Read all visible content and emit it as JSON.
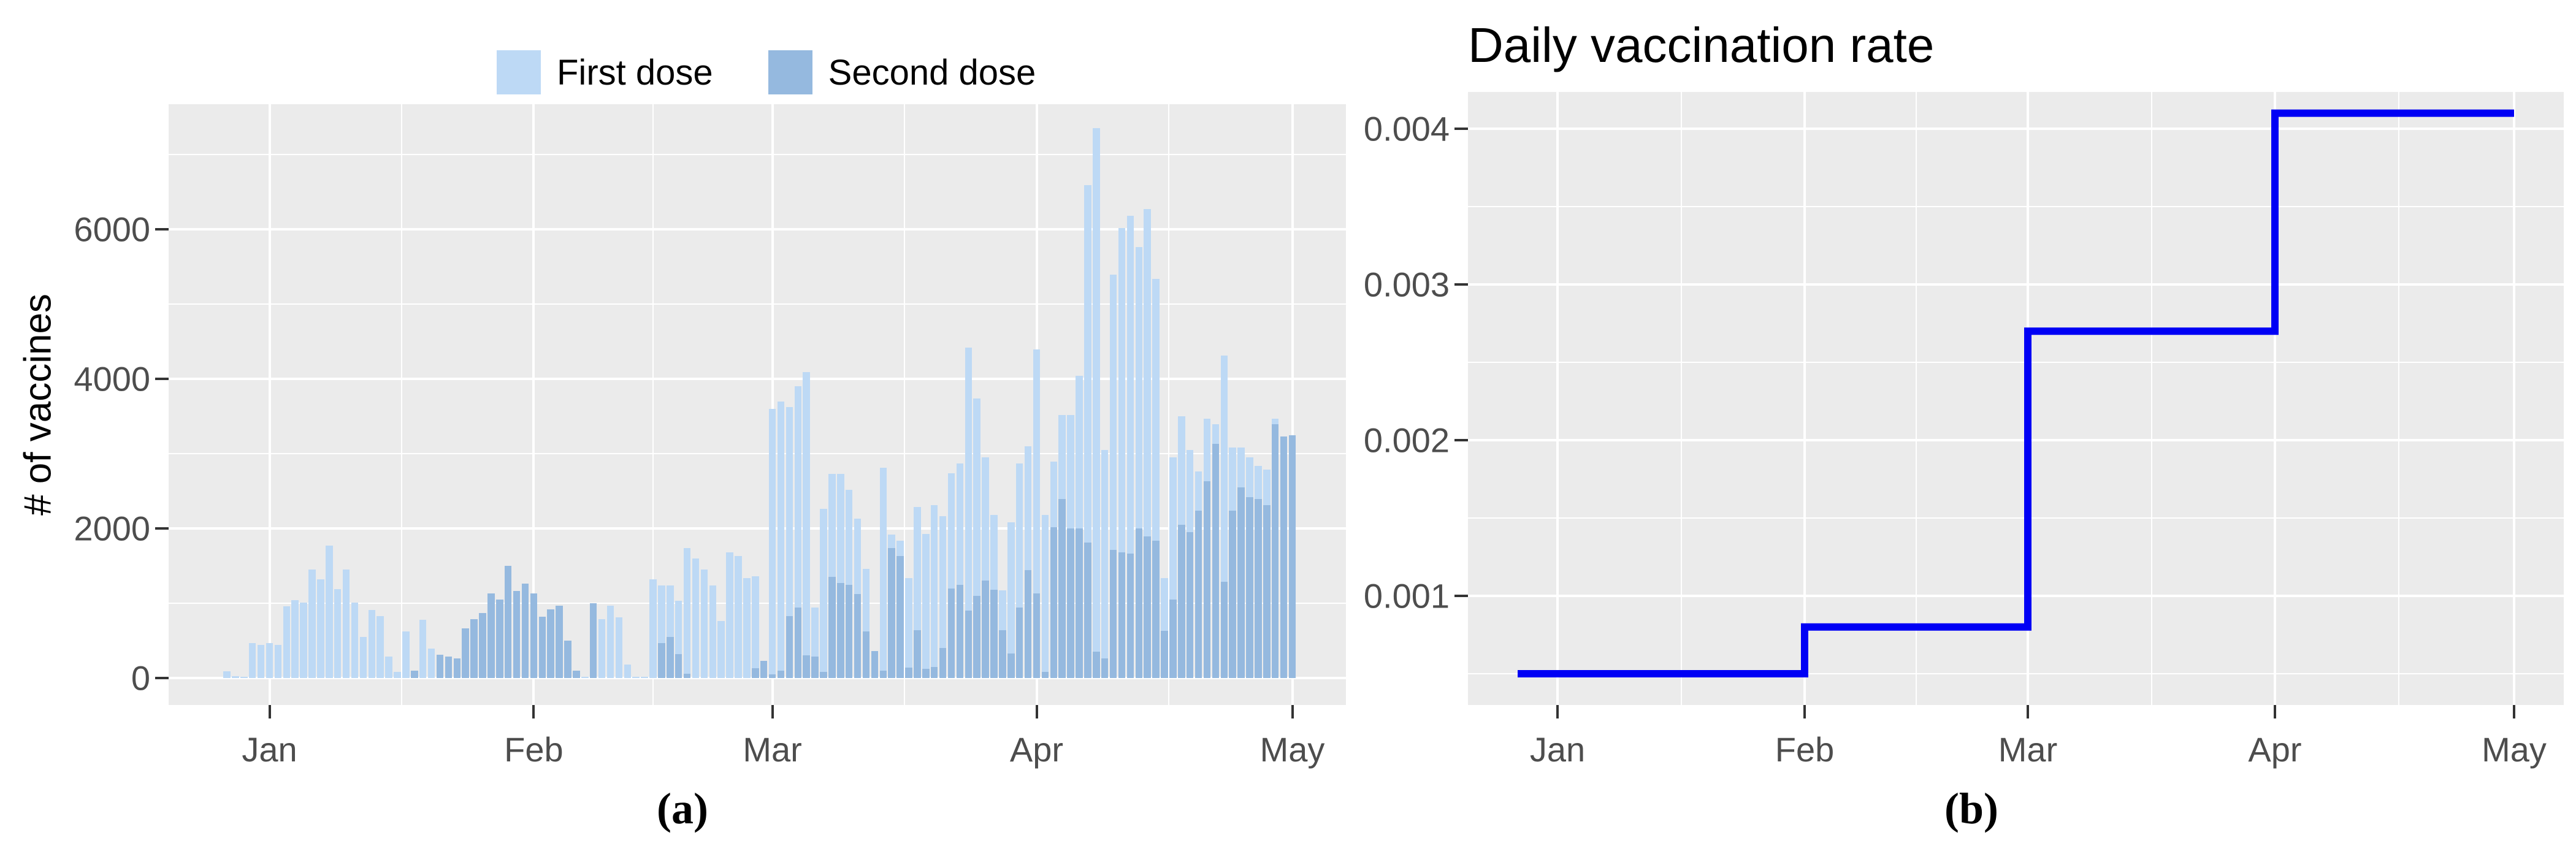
{
  "legend": {
    "first_label": "First dose",
    "second_label": "Second dose"
  },
  "panel_a": {
    "caption": "(a)",
    "ylabel": "# of vaccines",
    "yticks": [
      0,
      2000,
      4000,
      6000
    ],
    "ytick_labels": [
      "0",
      "2000",
      "4000",
      "6000"
    ],
    "xtick_labels": [
      "Jan",
      "Feb",
      "Mar",
      "Apr",
      "May"
    ]
  },
  "panel_b": {
    "caption": "(b)",
    "title": "Daily vaccination rate",
    "yticks": [
      0.001,
      0.002,
      0.003,
      0.004
    ],
    "ytick_labels": [
      "0.001",
      "0.002",
      "0.003",
      "0.004"
    ],
    "xtick_labels": [
      "Jan",
      "Feb",
      "Mar",
      "Apr",
      "May"
    ]
  },
  "colors": {
    "first_dose": "#BDD9F5",
    "second_dose": "#95B9DF",
    "step_line": "#0000F5",
    "panel_bg": "#EBEBEB",
    "grid": "#FFFFFF",
    "tick_text": "#4D4D4D"
  },
  "chart_data": [
    {
      "type": "bar",
      "panel": "a",
      "ylabel": "# of vaccines",
      "x_start": "Dec 27",
      "x_end": "May 1",
      "x_unit": "day",
      "xticks": [
        "Jan",
        "Feb",
        "Mar",
        "Apr",
        "May"
      ],
      "xtick_day_offsets": [
        5,
        36,
        64,
        95,
        125
      ],
      "minor_xtick_day_offsets": [
        20.5,
        50,
        79.5,
        110.5
      ],
      "yticks": [
        0,
        2000,
        4000,
        6000
      ],
      "ylim": [
        0,
        7700
      ],
      "legend_position": "top",
      "grid": true,
      "bar_position": "identity-overlay",
      "series": [
        {
          "name": "First dose",
          "values": [
            90,
            25,
            20,
            470,
            440,
            470,
            440,
            960,
            1040,
            1010,
            1450,
            1320,
            1770,
            1190,
            1450,
            1010,
            550,
            910,
            830,
            290,
            80,
            620,
            100,
            780,
            390,
            60,
            0,
            0,
            0,
            0,
            0,
            0,
            0,
            0,
            0,
            0,
            0,
            0,
            0,
            0,
            0,
            0,
            20,
            0,
            790,
            970,
            815,
            180,
            20,
            20,
            1320,
            1240,
            1240,
            1030,
            1740,
            1600,
            1450,
            1240,
            760,
            1680,
            1630,
            1340,
            1360,
            230,
            3600,
            3700,
            3620,
            3900,
            4090,
            940,
            2260,
            2730,
            2730,
            2520,
            2130,
            1460,
            360,
            2810,
            1920,
            1840,
            1340,
            2290,
            1930,
            2310,
            2160,
            2740,
            2870,
            4420,
            3740,
            2950,
            2180,
            1170,
            2080,
            2870,
            3100,
            4390,
            2180,
            2890,
            3520,
            3520,
            4040,
            6590,
            7350,
            3050,
            5390,
            6020,
            6180,
            5760,
            6270,
            5340,
            1340,
            2950,
            3500,
            3050,
            2760,
            3470,
            3390,
            4310,
            3080,
            3080,
            2950,
            2840,
            2790,
            3470,
            2130,
            1900
          ]
        },
        {
          "name": "Second dose",
          "values": [
            0,
            0,
            0,
            0,
            0,
            0,
            0,
            0,
            0,
            0,
            0,
            0,
            0,
            0,
            0,
            0,
            0,
            0,
            0,
            0,
            0,
            0,
            100,
            0,
            0,
            310,
            290,
            260,
            660,
            790,
            870,
            1130,
            1050,
            1500,
            1160,
            1260,
            1130,
            820,
            920,
            970,
            500,
            100,
            0,
            1000,
            0,
            0,
            0,
            0,
            0,
            0,
            0,
            470,
            550,
            320,
            60,
            0,
            0,
            0,
            0,
            0,
            0,
            0,
            130,
            230,
            50,
            100,
            830,
            940,
            300,
            290,
            80,
            1350,
            1270,
            1250,
            1120,
            620,
            360,
            100,
            1740,
            1630,
            140,
            640,
            120,
            150,
            400,
            1200,
            1250,
            900,
            1100,
            1300,
            1180,
            640,
            330,
            940,
            1440,
            1130,
            80,
            2020,
            2390,
            2000,
            2000,
            1815,
            350,
            260,
            1710,
            1680,
            1660,
            2000,
            1890,
            1840,
            630,
            1050,
            2050,
            1950,
            2240,
            2630,
            3130,
            1290,
            2240,
            2550,
            2420,
            2390,
            2310,
            3390,
            3230,
            3250
          ]
        }
      ]
    },
    {
      "type": "line",
      "panel": "b",
      "title": "Daily vaccination rate",
      "line_style": "step-after",
      "xticks": [
        "Jan",
        "Feb",
        "Mar",
        "Apr",
        "May"
      ],
      "xtick_day_offsets": [
        5,
        36,
        64,
        95,
        125
      ],
      "minor_xtick_day_offsets": [
        20.5,
        50,
        79.5,
        110.5
      ],
      "yticks": [
        0.001,
        0.002,
        0.003,
        0.004
      ],
      "ylim": [
        0.0003,
        0.0043
      ],
      "grid": true,
      "points": [
        {
          "x": "Dec 27",
          "day": 0,
          "rate": 0.0005
        },
        {
          "x": "Feb 1",
          "day": 36,
          "rate": 0.0008
        },
        {
          "x": "Mar 1",
          "day": 64,
          "rate": 0.0027
        },
        {
          "x": "Apr 1",
          "day": 95,
          "rate": 0.0041
        },
        {
          "x": "May 1",
          "day": 125,
          "rate": 0.0041
        }
      ]
    }
  ]
}
